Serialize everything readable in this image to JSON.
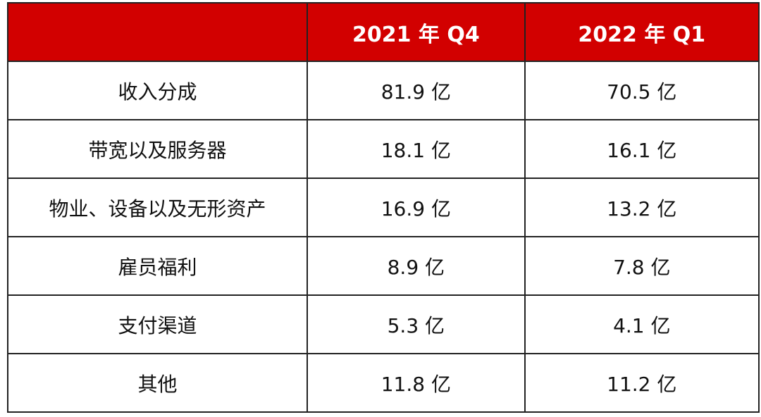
{
  "table": {
    "header": [
      "",
      "2021 年 Q4",
      "2022 年 Q1"
    ],
    "rows": [
      [
        "收入分成",
        "81.9 亿",
        "70.5 亿"
      ],
      [
        "带宽以及服务器",
        "18.1 亿",
        "16.1 亿"
      ],
      [
        "物业、设备以及无形资产",
        "16.9 亿",
        "13.2 亿"
      ],
      [
        "雇员福利",
        "8.9 亿",
        "7.8 亿"
      ],
      [
        "支付渠道",
        "5.3 亿",
        "4.1 亿"
      ],
      [
        "其他",
        "11.8 亿",
        "11.2 亿"
      ]
    ]
  }
}
